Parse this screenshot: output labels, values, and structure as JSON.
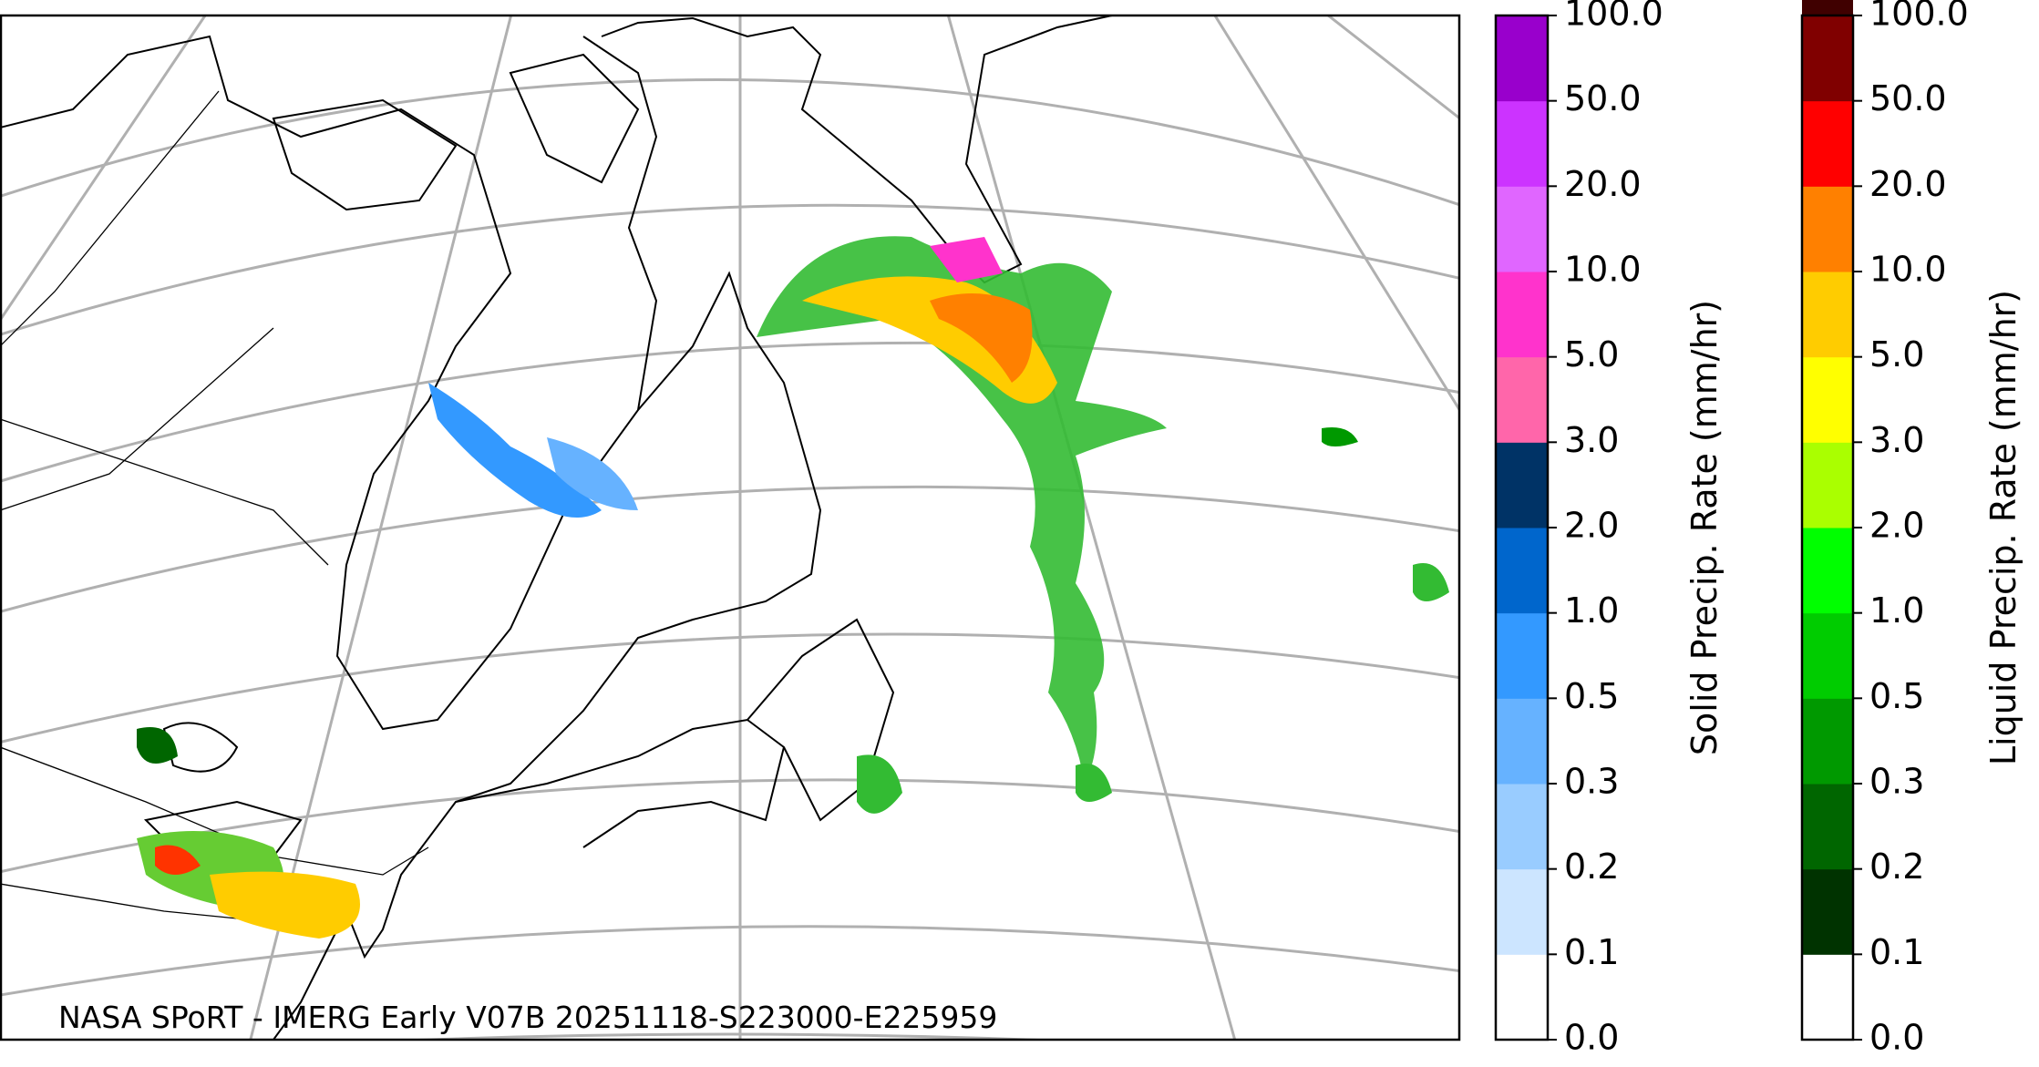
{
  "map": {
    "credit": "NASA SPoRT - IMERG Early V07B 20251118-S223000-E225959"
  },
  "colorbars": [
    {
      "label": "Solid Precip. Rate (mm/hr)",
      "ticks": [
        {
          "value": 0,
          "label": "0.0"
        },
        {
          "value": 0.1,
          "label": "0.1"
        },
        {
          "value": 0.2,
          "label": "0.2"
        },
        {
          "value": 0.3,
          "label": "0.3"
        },
        {
          "value": 0.5,
          "label": "0.5"
        },
        {
          "value": 1,
          "label": "1.0"
        },
        {
          "value": 2,
          "label": "2.0"
        },
        {
          "value": 3,
          "label": "3.0"
        },
        {
          "value": 5,
          "label": "5.0"
        },
        {
          "value": 10,
          "label": "10.0"
        },
        {
          "value": 20,
          "label": "20.0"
        },
        {
          "value": 50,
          "label": "50.0"
        },
        {
          "value": 100,
          "label": "100.0"
        }
      ],
      "colors": [
        "#ffffff",
        "#cce5ff",
        "#99ccff",
        "#66b2ff",
        "#3399ff",
        "#0066cc",
        "#003366",
        "#ff66aa",
        "#ff33cc",
        "#e066ff",
        "#cc33ff",
        "#9900cc"
      ]
    },
    {
      "label": "Liquid Precip. Rate (mm/hr)",
      "ticks": [
        {
          "value": 0,
          "label": "0.0"
        },
        {
          "value": 0.1,
          "label": "0.1"
        },
        {
          "value": 0.2,
          "label": "0.2"
        },
        {
          "value": 0.3,
          "label": "0.3"
        },
        {
          "value": 0.5,
          "label": "0.5"
        },
        {
          "value": 1,
          "label": "1.0"
        },
        {
          "value": 2,
          "label": "2.0"
        },
        {
          "value": 3,
          "label": "3.0"
        },
        {
          "value": 5,
          "label": "5.0"
        },
        {
          "value": 10,
          "label": "10.0"
        },
        {
          "value": 20,
          "label": "20.0"
        },
        {
          "value": 50,
          "label": "50.0"
        },
        {
          "value": 100,
          "label": "100.0"
        }
      ],
      "colors": [
        "#ffffff",
        "#003300",
        "#006600",
        "#009900",
        "#00cc00",
        "#00ff00",
        "#aaff00",
        "#ffff00",
        "#ffcc00",
        "#ff8000",
        "#ff0000",
        "#800000",
        "#400000"
      ]
    }
  ]
}
